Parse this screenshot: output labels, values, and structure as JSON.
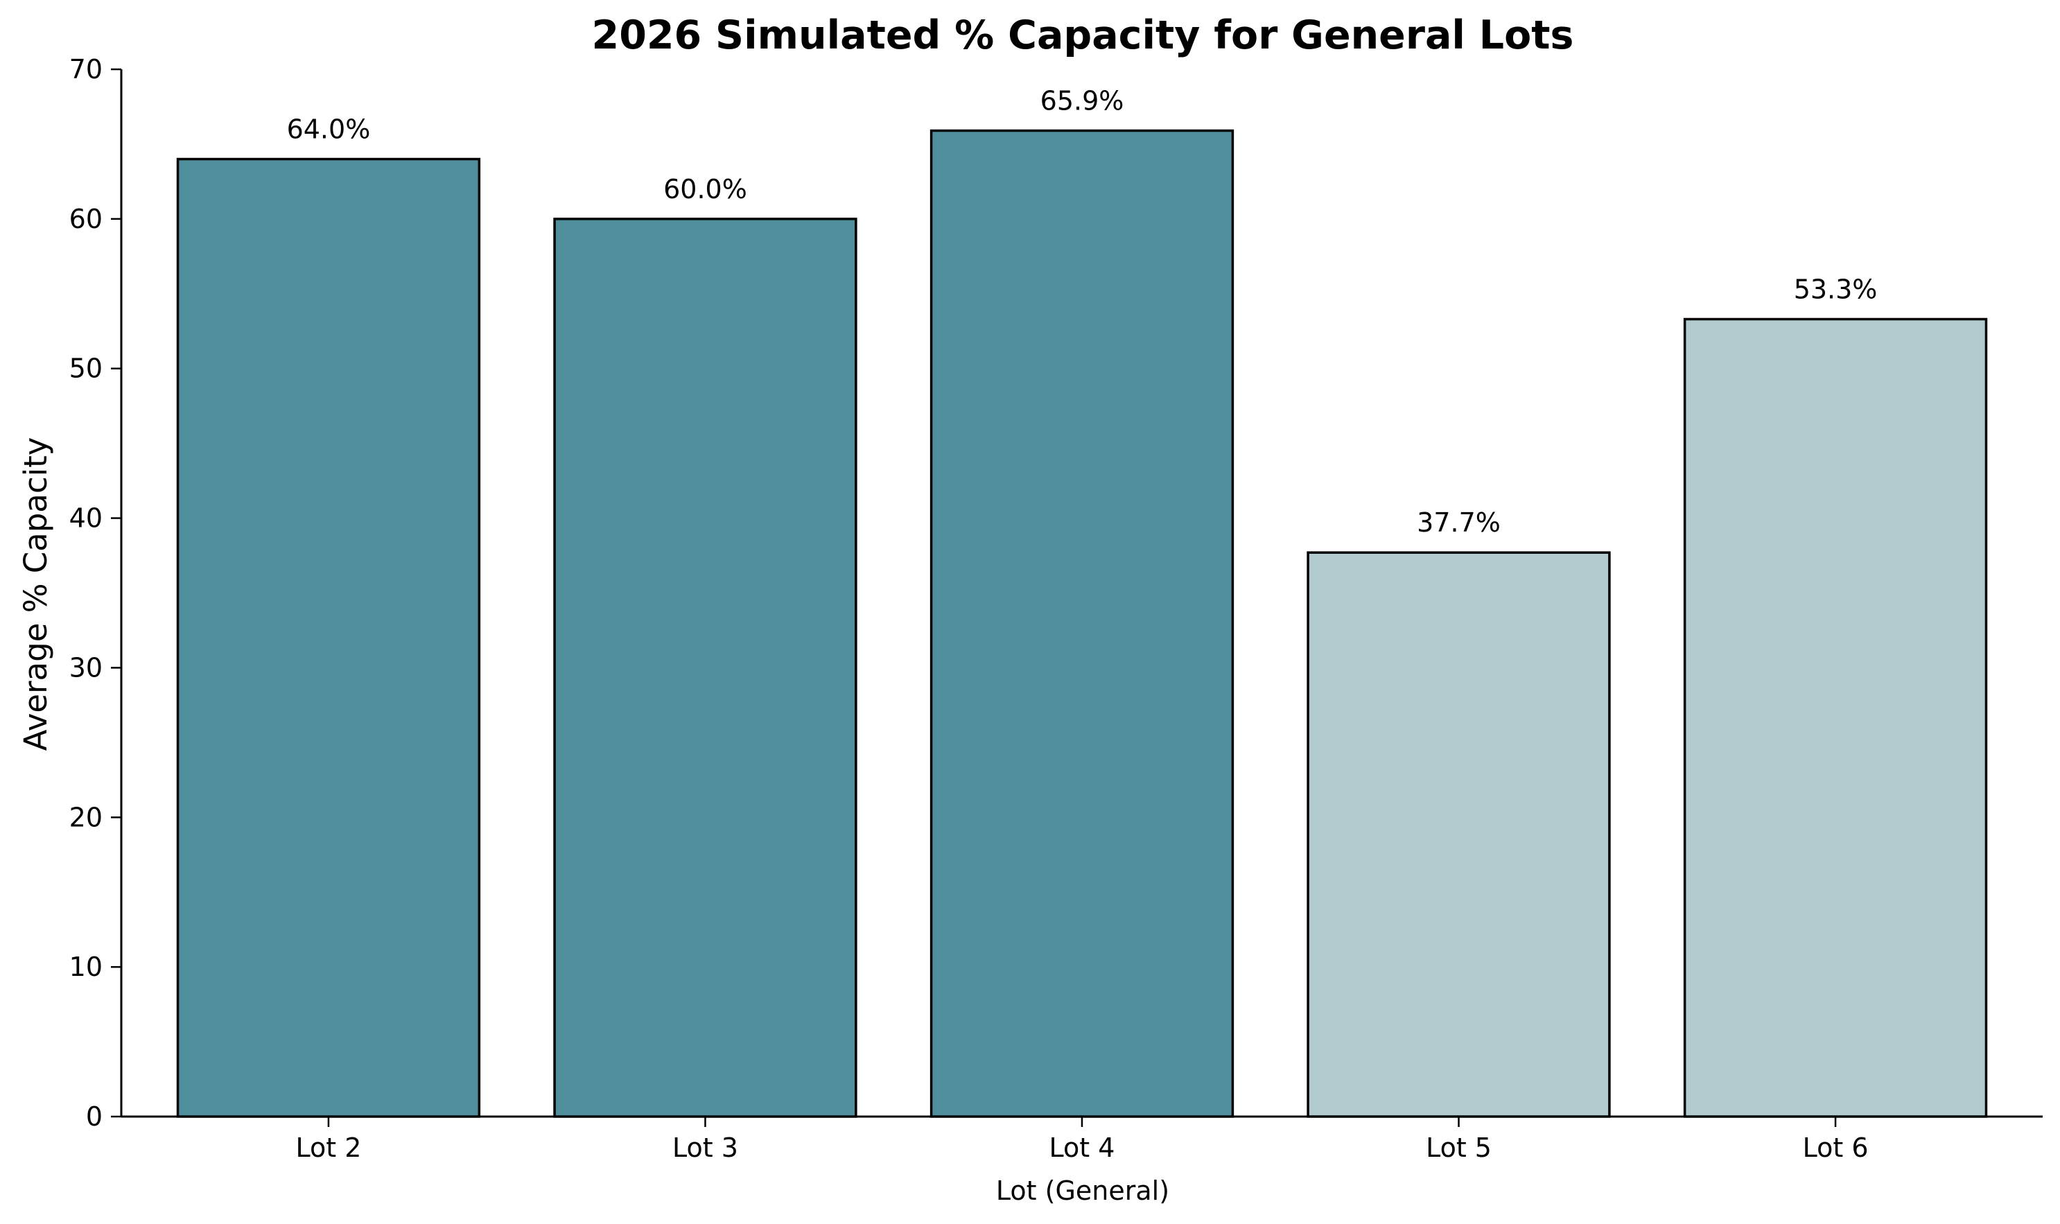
{
  "chart_data": {
    "type": "bar",
    "title": "2026 Simulated % Capacity for General Lots",
    "xlabel": "Lot (General)",
    "ylabel": "Average % Capacity",
    "categories": [
      "Lot 2",
      "Lot 3",
      "Lot 4",
      "Lot 5",
      "Lot 6"
    ],
    "values": [
      64.0,
      60.0,
      65.9,
      37.7,
      53.3
    ],
    "value_labels": [
      "64.0%",
      "60.0%",
      "65.9%",
      "37.7%",
      "53.3%"
    ],
    "bar_colors": [
      "#4f8f9c",
      "#4f8f9c",
      "#4f8f9c",
      "#b1cacd",
      "#b1cacd"
    ],
    "edge_color": "#000000",
    "ylim": [
      0,
      70
    ],
    "yticks": [
      0,
      10,
      20,
      30,
      40,
      50,
      60,
      70
    ],
    "grid": false,
    "legend": "none"
  }
}
